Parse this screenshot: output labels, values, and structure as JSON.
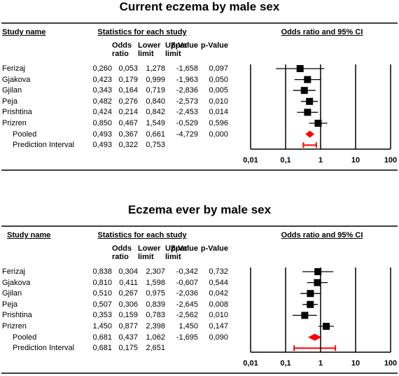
{
  "chart_data": [
    {
      "type": "forest",
      "title": "Current eczema by male sex",
      "study_header": "Study name",
      "stats_header": "Statistics for each study",
      "plot_header": "Odds ratio and 95% CI",
      "categories": [
        "Ferizaj",
        "Gjakova",
        "Gjilan",
        "Peja",
        "Prishtina",
        "Prizren",
        "Pooled",
        "Prediction Interval"
      ],
      "series": [
        {
          "name": "Odds ratio",
          "values": [
            0.26,
            0.423,
            0.343,
            0.482,
            0.424,
            0.85,
            0.493,
            0.493
          ],
          "value_labels": [
            "0,260",
            "0,423",
            "0,343",
            "0,482",
            "0,424",
            "0,850",
            "0,493",
            "0,493"
          ]
        },
        {
          "name": "Lower limit",
          "values": [
            0.053,
            0.179,
            0.164,
            0.276,
            0.214,
            0.467,
            0.367,
            0.322
          ],
          "value_labels": [
            "0,053",
            "0,179",
            "0,164",
            "0,276",
            "0,214",
            "0,467",
            "0,367",
            "0,322"
          ]
        },
        {
          "name": "Upper limit",
          "values": [
            1.278,
            0.999,
            0.719,
            0.84,
            0.842,
            1.549,
            0.661,
            0.753
          ],
          "value_labels": [
            "1,278",
            "0,999",
            "0,719",
            "0,840",
            "0,842",
            "1,549",
            "0,661",
            "0,753"
          ]
        },
        {
          "name": "Z-Value",
          "values": [
            -1.658,
            -1.963,
            -2.836,
            -2.573,
            -2.453,
            -0.529,
            -4.729,
            null
          ],
          "value_labels": [
            "-1,658",
            "-1,963",
            "-2,836",
            "-2,573",
            "-2,453",
            "-0,529",
            "-4,729",
            null
          ]
        },
        {
          "name": "p-Value",
          "values": [
            0.097,
            0.05,
            0.005,
            0.01,
            0.014,
            0.596,
            0,
            null
          ],
          "value_labels": [
            "0,097",
            "0,050",
            "0,005",
            "0,010",
            "0,014",
            "0,596",
            "0,000",
            null
          ]
        }
      ],
      "xlim": [
        0.01,
        100
      ],
      "xticks": [
        {
          "value": 0.01,
          "label": "0,01"
        },
        {
          "value": 0.1,
          "label": "0,1"
        },
        1,
        10,
        100
      ],
      "log_scale": true,
      "color": "#000000",
      "summary_color": "#ff0000"
    },
    {
      "type": "forest",
      "title": "Eczema ever by male sex",
      "study_header": "Study name",
      "stats_header": "Statistics for each study",
      "plot_header": "Odds ratio and 95% CI",
      "categories": [
        "Ferizaj",
        "Gjakova",
        "Gjilan",
        "Peja",
        "Prishtina",
        "Prizren",
        "Pooled",
        "Prediction Interval"
      ],
      "series": [
        {
          "name": "Odds ratio",
          "values": [
            0.838,
            0.81,
            0.51,
            0.507,
            0.353,
            1.45,
            0.681,
            0.681
          ],
          "value_labels": [
            "0,838",
            "0,810",
            "0,510",
            "0,507",
            "0,353",
            "1,450",
            "0,681",
            "0,681"
          ]
        },
        {
          "name": "Lower limit",
          "values": [
            0.304,
            0.411,
            0.267,
            0.306,
            0.159,
            0.877,
            0.437,
            0.175
          ],
          "value_labels": [
            "0,304",
            "0,411",
            "0,267",
            "0,306",
            "0,159",
            "0,877",
            "0,437",
            "0,175"
          ]
        },
        {
          "name": "Upper limit",
          "values": [
            2.307,
            1.598,
            0.975,
            0.839,
            0.783,
            2.398,
            1.062,
            2.651
          ],
          "value_labels": [
            "2,307",
            "1,598",
            "0,975",
            "0,839",
            "0,783",
            "2,398",
            "1,062",
            "2,651"
          ]
        },
        {
          "name": "Z-Value",
          "values": [
            -0.342,
            -0.607,
            -2.036,
            -2.645,
            -2.562,
            1.45,
            -1.695,
            null
          ],
          "value_labels": [
            "-0,342",
            "-0,607",
            "-2,036",
            "-2,645",
            "-2,562",
            "1,450",
            "-1,695",
            null
          ]
        },
        {
          "name": "p-Value",
          "values": [
            0.732,
            0.544,
            0.042,
            0.008,
            0.01,
            0.147,
            0.09,
            null
          ],
          "value_labels": [
            "0,732",
            "0,544",
            "0,042",
            "0,008",
            "0,010",
            "0,147",
            "0,090",
            null
          ]
        }
      ],
      "xlim": [
        0.01,
        100
      ],
      "xticks": [
        {
          "value": 0.01,
          "label": "0,01"
        },
        {
          "value": 0.1,
          "label": "0,1"
        },
        1,
        10,
        100
      ],
      "log_scale": true,
      "color": "#000000",
      "summary_color": "#ff0000"
    }
  ]
}
